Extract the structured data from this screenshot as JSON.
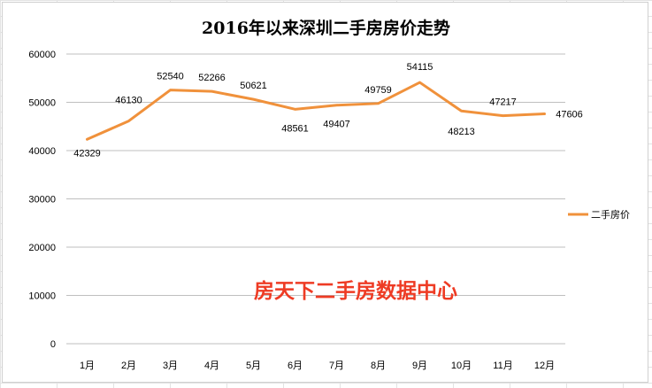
{
  "chart_data": {
    "type": "line",
    "title": "2016年以来深圳二手房房价走势",
    "categories": [
      "1月",
      "2月",
      "3月",
      "4月",
      "5月",
      "6月",
      "7月",
      "8月",
      "9月",
      "10月",
      "11月",
      "12月"
    ],
    "series": [
      {
        "name": "二手房价",
        "values": [
          42329,
          46130,
          52540,
          52266,
          50621,
          48561,
          49407,
          49759,
          54115,
          48213,
          47217,
          47606
        ],
        "color": "#f0913b"
      }
    ],
    "ylim": [
      0,
      60000
    ],
    "yticks": [
      0,
      10000,
      20000,
      30000,
      40000,
      50000,
      60000
    ],
    "grid": "horizontal",
    "legend": "right",
    "watermark": "房天下二手房数据中心"
  }
}
